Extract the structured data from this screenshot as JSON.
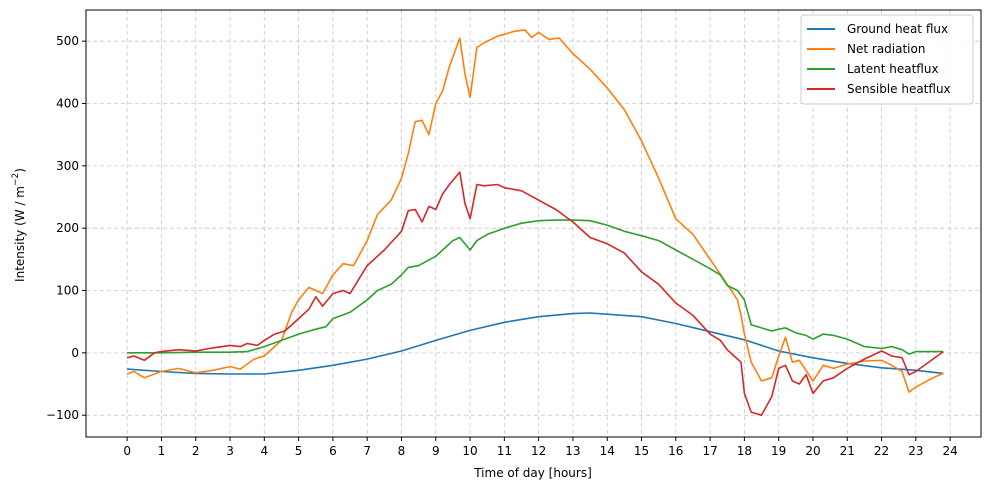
{
  "chart_data": {
    "type": "line",
    "xlabel": "Time of day [hours]",
    "ylabel_main": "Intensity (W / m",
    "ylabel_sup": "−2",
    "ylabel_close": ")",
    "xlim": [
      -1.2,
      24.9
    ],
    "ylim": [
      -135,
      550
    ],
    "xticks": [
      0,
      1,
      2,
      3,
      4,
      5,
      6,
      7,
      8,
      9,
      10,
      11,
      12,
      13,
      14,
      15,
      16,
      17,
      18,
      19,
      20,
      21,
      22,
      23,
      24
    ],
    "yticks": [
      -100,
      0,
      100,
      200,
      300,
      400,
      500
    ],
    "grid": true,
    "legend_position": "top-right",
    "series": [
      {
        "name": "Ground heat flux",
        "color": "#1f77b4",
        "x": [
          0,
          1,
          2,
          3,
          4,
          5,
          6,
          7,
          8,
          9,
          10,
          11,
          12,
          13,
          13.5,
          14,
          15,
          16,
          17,
          18,
          19,
          20,
          21,
          22,
          23,
          23.8
        ],
        "y": [
          -26,
          -30,
          -33,
          -34,
          -34,
          -28,
          -20,
          -10,
          3,
          20,
          36,
          49,
          58,
          63,
          64,
          62,
          58,
          47,
          34,
          21,
          3,
          -8,
          -17,
          -24,
          -28,
          -33
        ]
      },
      {
        "name": "Net radiation",
        "color": "#ff7f0e",
        "x": [
          0,
          0.2,
          0.5,
          1,
          1.5,
          2,
          2.5,
          3,
          3.3,
          3.7,
          4,
          4.5,
          4.8,
          5,
          5.3,
          5.7,
          6,
          6.3,
          6.6,
          7,
          7.3,
          7.7,
          8,
          8.2,
          8.4,
          8.6,
          8.8,
          9,
          9.2,
          9.4,
          9.7,
          9.85,
          10,
          10.2,
          10.4,
          10.8,
          11,
          11.3,
          11.6,
          11.8,
          12,
          12.3,
          12.6,
          13,
          13.5,
          14,
          14.5,
          15,
          15.5,
          16,
          16.5,
          17,
          17.5,
          17.8,
          17.9,
          18,
          18.2,
          18.5,
          18.8,
          19,
          19.2,
          19.4,
          19.6,
          20,
          20.3,
          20.6,
          21,
          21.5,
          22,
          22.3,
          22.6,
          22.8,
          23,
          23.5,
          23.8
        ],
        "y": [
          -34,
          -30,
          -40,
          -30,
          -25,
          -32,
          -28,
          -22,
          -26,
          -10,
          -5,
          20,
          65,
          85,
          105,
          95,
          125,
          143,
          140,
          180,
          222,
          245,
          280,
          320,
          371,
          373,
          350,
          400,
          420,
          460,
          505,
          448,
          410,
          490,
          497,
          508,
          511,
          516,
          518,
          506,
          514,
          503,
          505,
          480,
          455,
          425,
          390,
          340,
          280,
          215,
          190,
          150,
          110,
          85,
          60,
          30,
          -15,
          -45,
          -40,
          -5,
          25,
          -15,
          -12,
          -45,
          -20,
          -25,
          -18,
          -13,
          -12,
          -20,
          -30,
          -63,
          -55,
          -40,
          -33
        ]
      },
      {
        "name": "Latent heatflux",
        "color": "#2ca02c",
        "x": [
          0,
          0.5,
          1,
          2,
          3,
          3.5,
          4,
          4.5,
          5,
          5.5,
          5.8,
          6,
          6.5,
          7,
          7.3,
          7.7,
          8,
          8.2,
          8.5,
          9,
          9.3,
          9.5,
          9.7,
          10,
          10.2,
          10.5,
          11,
          11.5,
          12,
          12.5,
          13,
          13.5,
          14,
          14.5,
          15,
          15.5,
          16,
          16.5,
          17,
          17.3,
          17.5,
          17.8,
          18,
          18.2,
          18.5,
          18.8,
          19,
          19.2,
          19.5,
          19.8,
          20,
          20.3,
          20.6,
          21,
          21.5,
          22,
          22.3,
          22.6,
          22.8,
          23,
          23.8
        ],
        "y": [
          0,
          0,
          0,
          1,
          1,
          2,
          10,
          20,
          30,
          38,
          42,
          55,
          65,
          85,
          100,
          110,
          125,
          137,
          140,
          155,
          170,
          180,
          185,
          165,
          180,
          190,
          200,
          208,
          212,
          213,
          213,
          212,
          205,
          195,
          188,
          180,
          165,
          150,
          135,
          125,
          108,
          100,
          85,
          45,
          40,
          35,
          38,
          40,
          32,
          28,
          22,
          30,
          28,
          22,
          10,
          7,
          10,
          5,
          -2,
          2,
          2
        ]
      },
      {
        "name": "Sensible heatflux",
        "color": "#d62728",
        "x": [
          0,
          0.2,
          0.5,
          0.8,
          1,
          1.5,
          2,
          2.5,
          3,
          3.3,
          3.5,
          3.8,
          4,
          4.3,
          4.6,
          5,
          5.3,
          5.5,
          5.7,
          6,
          6.3,
          6.5,
          7,
          7.5,
          8,
          8.2,
          8.4,
          8.6,
          8.8,
          9,
          9.2,
          9.4,
          9.7,
          9.85,
          10,
          10.2,
          10.4,
          10.8,
          11,
          11.5,
          12,
          12.5,
          13,
          13.5,
          14,
          14.5,
          15,
          15.5,
          16,
          16.5,
          17,
          17.3,
          17.5,
          17.7,
          17.9,
          18,
          18.2,
          18.5,
          18.8,
          19,
          19.2,
          19.4,
          19.6,
          19.8,
          20,
          20.3,
          20.6,
          21,
          21.5,
          22,
          22.3,
          22.6,
          22.8,
          23,
          23.5,
          23.8
        ],
        "y": [
          -8,
          -5,
          -12,
          0,
          2,
          5,
          3,
          8,
          12,
          10,
          15,
          12,
          20,
          30,
          35,
          55,
          70,
          90,
          75,
          95,
          100,
          95,
          140,
          165,
          195,
          228,
          230,
          210,
          235,
          230,
          255,
          270,
          290,
          240,
          215,
          270,
          268,
          270,
          265,
          260,
          245,
          230,
          210,
          185,
          175,
          160,
          130,
          110,
          80,
          60,
          30,
          20,
          5,
          -5,
          -15,
          -65,
          -95,
          -100,
          -70,
          -25,
          -20,
          -45,
          -50,
          -35,
          -65,
          -45,
          -40,
          -25,
          -10,
          3,
          -5,
          -8,
          -35,
          -30,
          -10,
          2
        ]
      }
    ]
  }
}
